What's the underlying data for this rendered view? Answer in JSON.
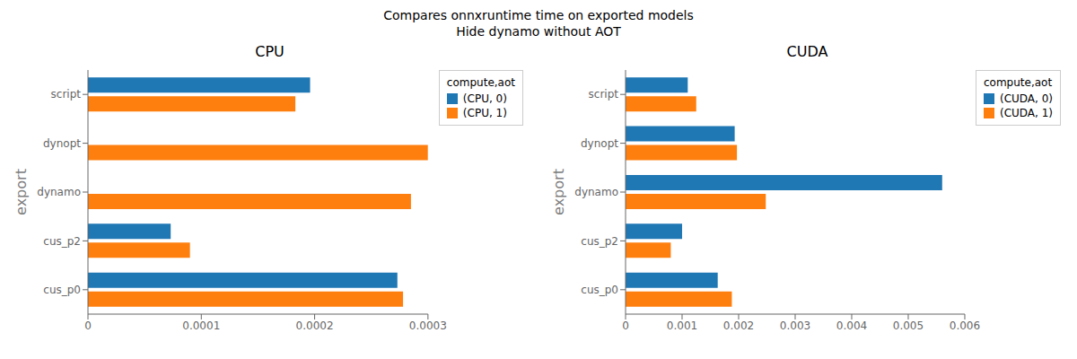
{
  "title": "Compares onnxruntime time on exported models\nHide dynamo without AOT",
  "chart_data": [
    {
      "type": "bar",
      "orientation": "horizontal",
      "title": "CPU",
      "ylabel": "export",
      "categories": [
        "cus_p0",
        "cus_p2",
        "dynamo",
        "dynopt",
        "script"
      ],
      "series": [
        {
          "name": "(CPU, 0)",
          "color": "#1f77b4",
          "values": [
            0.000273,
            7.3e-05,
            0.0,
            0.0,
            0.000196
          ]
        },
        {
          "name": "(CPU, 1)",
          "color": "#ff7f0e",
          "values": [
            0.000278,
            9e-05,
            0.000285,
            0.0003,
            0.000183
          ]
        }
      ],
      "xlim": [
        0,
        0.0003
      ],
      "xticks": [
        0,
        0.0001,
        0.0002,
        0.0003
      ],
      "legend": "upper right",
      "legend_title": "compute,aot",
      "grid": false
    },
    {
      "type": "bar",
      "orientation": "horizontal",
      "title": "CUDA",
      "ylabel": "export",
      "categories": [
        "cus_p0",
        "cus_p2",
        "dynamo",
        "dynopt",
        "script"
      ],
      "series": [
        {
          "name": "(CUDA, 0)",
          "color": "#1f77b4",
          "values": [
            0.00163,
            0.001,
            0.0056,
            0.00193,
            0.0011
          ]
        },
        {
          "name": "(CUDA, 1)",
          "color": "#ff7f0e",
          "values": [
            0.00188,
            0.0008,
            0.00248,
            0.00197,
            0.00125
          ]
        }
      ],
      "xlim": [
        0,
        0.006
      ],
      "xticks": [
        0,
        0.001,
        0.002,
        0.003,
        0.004,
        0.005,
        0.006
      ],
      "legend": "upper right",
      "legend_title": "compute,aot",
      "grid": false
    }
  ]
}
